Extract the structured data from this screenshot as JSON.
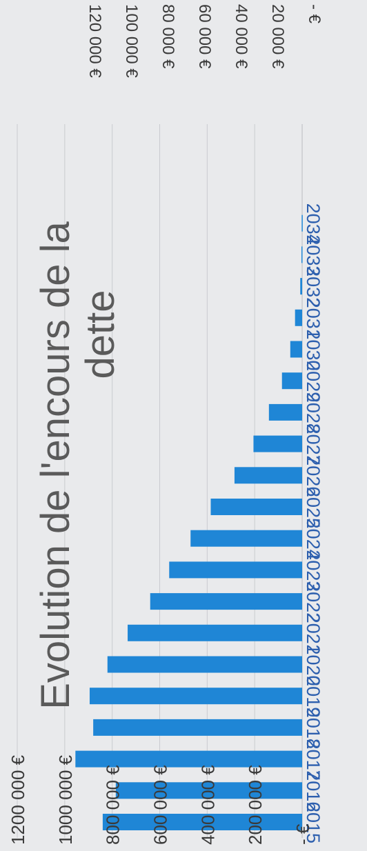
{
  "chart_data": [
    {
      "type": "bar",
      "title": "Evolution de l'encours de la dette",
      "categories": [
        "2015",
        "2016",
        "2017",
        "2018",
        "2019",
        "2020",
        "2021",
        "2022",
        "2023",
        "2024",
        "2025",
        "2026",
        "2027",
        "2028",
        "2029",
        "2030",
        "2031",
        "2032",
        "2033",
        "2034"
      ],
      "values": [
        840000,
        785000,
        955000,
        880000,
        895000,
        820000,
        735000,
        640000,
        560000,
        470000,
        385000,
        285000,
        205000,
        140000,
        85000,
        50000,
        30000,
        8000,
        3000,
        2000
      ],
      "y_ticks": [
        0,
        200000,
        400000,
        600000,
        800000,
        1000000,
        1200000
      ],
      "y_tick_labels": [
        "-  €",
        "200 000 €",
        "400 000 €",
        "600 000 €",
        "800 000 €",
        "1000 000 €",
        "1200 000 €"
      ],
      "ylim": [
        0,
        1200000
      ],
      "xlabel": "",
      "ylabel": "",
      "grid": true,
      "orientation": "rotated-90"
    },
    {
      "type": "bar",
      "partial": true,
      "y_ticks": [
        0,
        20000,
        40000,
        60000,
        80000,
        100000,
        120000
      ],
      "y_tick_labels": [
        "-  €",
        "20 000 €",
        "40 000 €",
        "60 000 €",
        "80 000 €",
        "100 000 €",
        "120 000 €"
      ],
      "ylim": [
        0,
        120000
      ],
      "orientation": "rotated-90"
    }
  ],
  "colors": {
    "bar": "#1f86d6",
    "grid": "#c9cbcf",
    "text": "#3a3a3a",
    "title": "#5a5a5a",
    "background": "#e9eaec"
  }
}
